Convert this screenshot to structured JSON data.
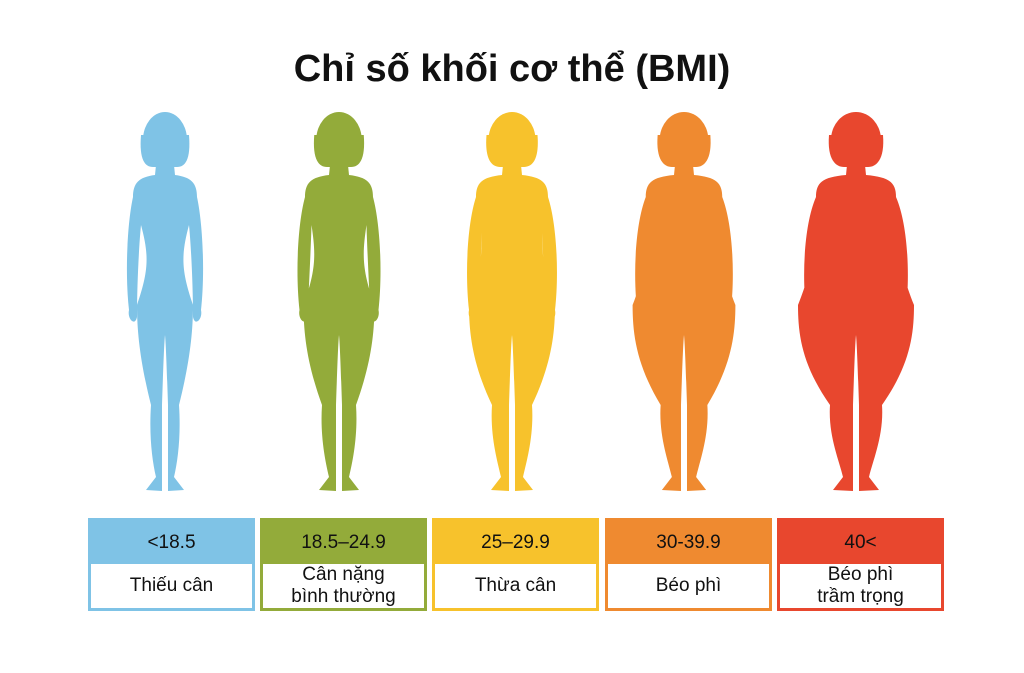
{
  "title": "Chỉ số khối cơ thể (BMI)",
  "categories": [
    {
      "range": "<18.5",
      "label": "Thiếu cân",
      "color": "#7fc3e6"
    },
    {
      "range": "18.5–24.9",
      "label": "Cân nặng\nbình thường",
      "color": "#93ab3a"
    },
    {
      "range": "25–29.9",
      "label": "Thừa cân",
      "color": "#f7c22c"
    },
    {
      "range": "30-39.9",
      "label": "Béo phì",
      "color": "#ef8a30"
    },
    {
      "range": "40<",
      "label": "Béo phì\ntrầm trọng",
      "color": "#e8472e"
    }
  ],
  "figures": [
    {
      "icon": "underweight-silhouette-icon",
      "color": "#7fc3e6"
    },
    {
      "icon": "normal-weight-silhouette-icon",
      "color": "#93ab3a"
    },
    {
      "icon": "overweight-silhouette-icon",
      "color": "#f7c22c"
    },
    {
      "icon": "obese-silhouette-icon",
      "color": "#ef8a30"
    },
    {
      "icon": "severely-obese-silhouette-icon",
      "color": "#e8472e"
    }
  ]
}
